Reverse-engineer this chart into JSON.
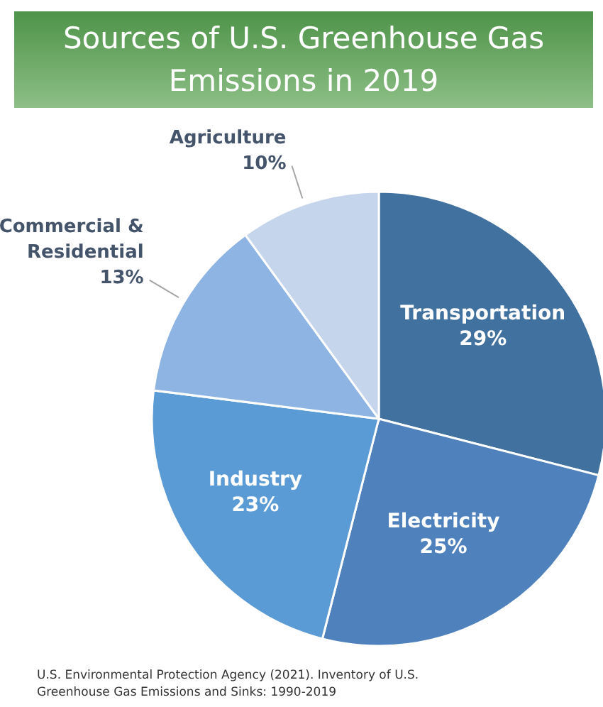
{
  "chart_data": {
    "type": "pie",
    "title": "Sources of U.S. Greenhouse Gas Emissions in 2019",
    "categories": [
      "Transportation",
      "Electricity",
      "Industry",
      "Commercial & Residential",
      "Agriculture"
    ],
    "values": [
      29,
      25,
      23,
      13,
      10
    ],
    "colors": [
      "#41719f",
      "#4f81bd",
      "#5b9bd5",
      "#8eb4e3",
      "#c5d5ec"
    ],
    "value_labels": [
      "29%",
      "25%",
      "23%",
      "13%",
      "10%"
    ],
    "annotations": [
      "U.S. Environmental Protection Agency (2021). Inventory of U.S. Greenhouse Gas Emissions and Sinks: 1990-2019"
    ]
  }
}
